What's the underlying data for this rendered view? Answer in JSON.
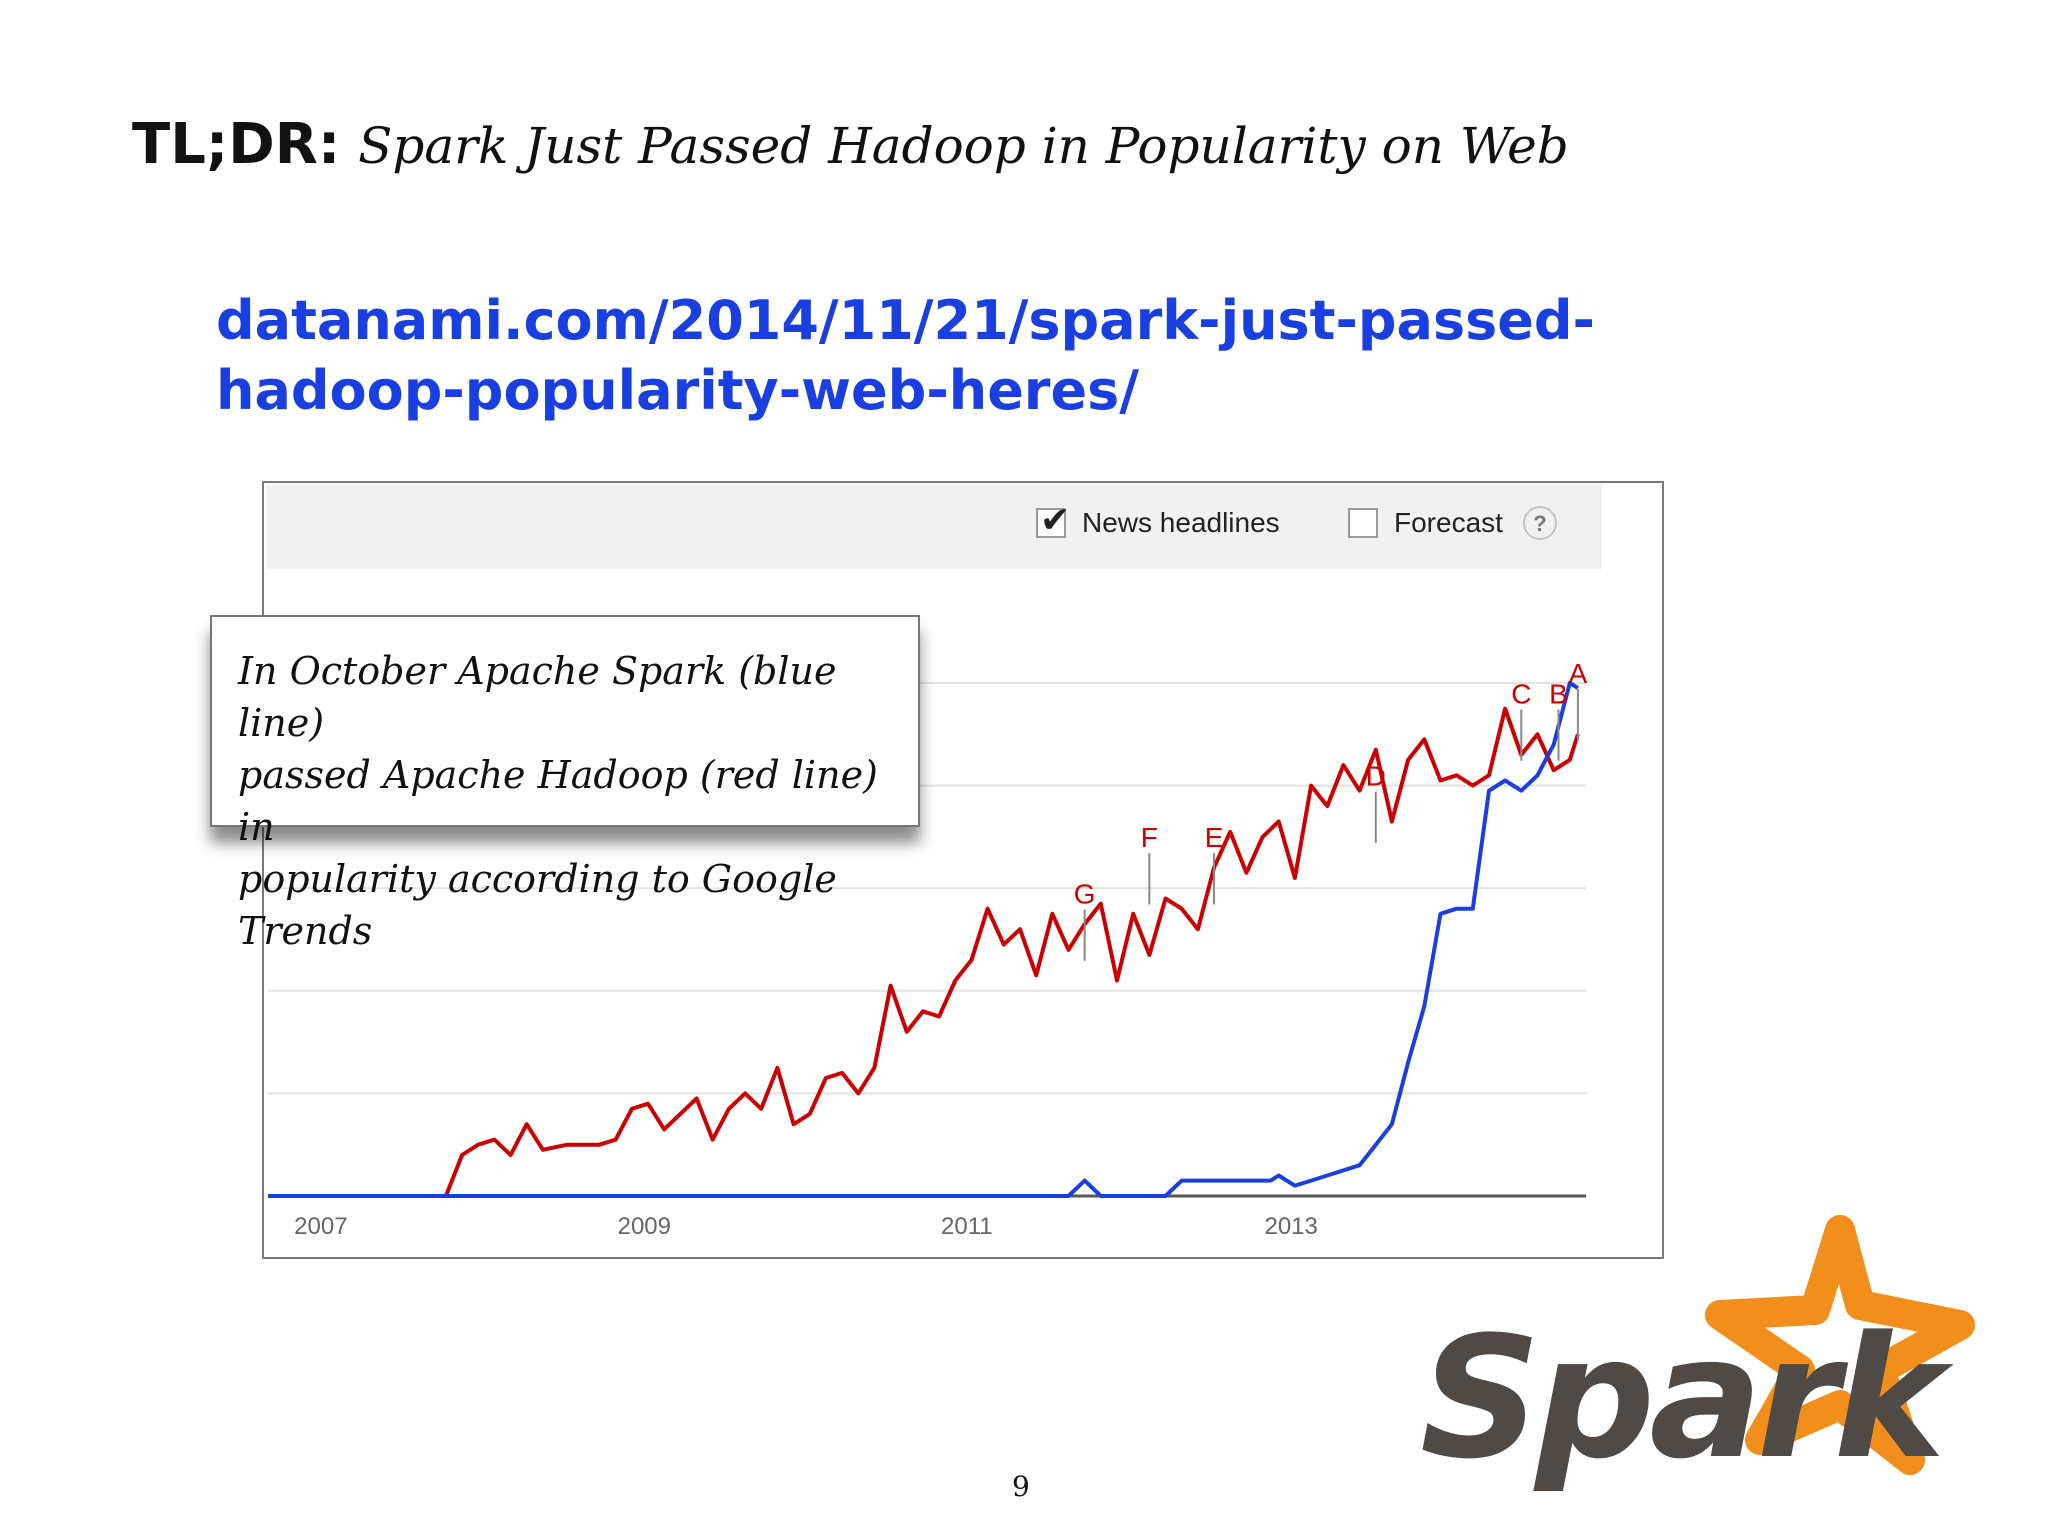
{
  "slide": {
    "title_lead": "TL;DR:",
    "title_rest": "Spark Just Passed Hadoop in Popularity on Web",
    "url_line1": "datanami.com/2014/11/21/spark-just-passed-",
    "url_line2": "hadoop-popularity-web-heres/",
    "page_number": "9",
    "logo_text": "Spark",
    "logo_colors": {
      "text": "#4f4a46",
      "star": "#f28f1c"
    }
  },
  "toolbar": {
    "news_headlines_label": "News headlines",
    "news_headlines_checked": true,
    "forecast_label": "Forecast",
    "forecast_checked": false,
    "help_label": "?"
  },
  "callout": {
    "line1": "In October Apache Spark (blue line)",
    "line2": "passed Apache Hadoop (red line) in",
    "line3": "popularity according to Google Trends"
  },
  "chart_data": {
    "type": "line",
    "title": "",
    "xlabel": "",
    "ylabel": "",
    "x_tick_labels": [
      "2007",
      "2009",
      "2011",
      "2013"
    ],
    "x_ticks": [
      2007.0,
      2009.0,
      2011.0,
      2013.0
    ],
    "xlim": [
      2006.9,
      2015.05
    ],
    "ylim": [
      0,
      100
    ],
    "grid": true,
    "legend": "none",
    "series": [
      {
        "color": "#cc0000",
        "x": [
          2006.9,
          2007.5,
          2008.0,
          2008.1,
          2008.2,
          2008.3,
          2008.4,
          2008.5,
          2008.6,
          2008.75,
          2008.85,
          2008.95,
          2009.05,
          2009.15,
          2009.25,
          2009.35,
          2009.45,
          2009.55,
          2009.65,
          2009.75,
          2009.85,
          2009.95,
          2010.05,
          2010.15,
          2010.25,
          2010.35,
          2010.45,
          2010.55,
          2010.65,
          2010.75,
          2010.85,
          2010.95,
          2011.05,
          2011.15,
          2011.25,
          2011.35,
          2011.45,
          2011.55,
          2011.65,
          2011.75,
          2011.85,
          2011.95,
          2012.05,
          2012.15,
          2012.25,
          2012.35,
          2012.45,
          2012.55,
          2012.65,
          2012.75,
          2012.85,
          2012.95,
          2013.05,
          2013.15,
          2013.25,
          2013.35,
          2013.45,
          2013.55,
          2013.65,
          2013.75,
          2013.85,
          2013.95,
          2014.05,
          2014.15,
          2014.25,
          2014.35,
          2014.45,
          2014.55,
          2014.65,
          2014.75,
          2014.85,
          2014.95,
          2015.0
        ],
        "values": [
          0,
          0,
          0,
          8,
          10,
          11,
          8,
          14,
          9,
          10,
          10,
          10,
          11,
          17,
          18,
          13,
          16,
          19,
          11,
          17,
          20,
          17,
          25,
          14,
          16,
          23,
          24,
          20,
          25,
          41,
          32,
          36,
          35,
          42,
          46,
          56,
          49,
          52,
          43,
          55,
          48,
          53,
          57,
          42,
          55,
          47,
          58,
          56,
          52,
          64,
          71,
          63,
          70,
          73,
          62,
          80,
          76,
          84,
          79,
          87,
          73,
          85,
          89,
          81,
          82,
          80,
          82,
          95,
          86,
          90,
          83,
          85,
          90
        ]
      },
      {
        "color": "#1a3fe0",
        "x": [
          2006.9,
          2008.0,
          2011.0,
          2011.85,
          2011.95,
          2012.05,
          2012.45,
          2012.55,
          2012.75,
          2013.1,
          2013.15,
          2013.25,
          2013.35,
          2013.45,
          2013.55,
          2013.65,
          2013.75,
          2013.85,
          2013.95,
          2014.05,
          2014.15,
          2014.25,
          2014.35,
          2014.45,
          2014.55,
          2014.65,
          2014.75,
          2014.85,
          2014.95,
          2015.0
        ],
        "values": [
          0,
          0,
          0,
          0,
          3,
          0,
          0,
          3,
          3,
          3,
          4,
          2,
          3,
          4,
          5,
          6,
          10,
          14,
          26,
          37,
          55,
          56,
          56,
          79,
          81,
          79,
          82,
          88,
          100,
          99
        ]
      }
    ],
    "annotations": [
      {
        "label": "G",
        "x": 2011.95,
        "y": 57
      },
      {
        "label": "F",
        "x": 2012.35,
        "y": 68
      },
      {
        "label": "E",
        "x": 2012.75,
        "y": 68
      },
      {
        "label": "D",
        "x": 2013.75,
        "y": 80
      },
      {
        "label": "C",
        "x": 2014.65,
        "y": 96
      },
      {
        "label": "B",
        "x": 2014.88,
        "y": 96
      },
      {
        "label": "A",
        "x": 2015.0,
        "y": 100
      }
    ]
  }
}
